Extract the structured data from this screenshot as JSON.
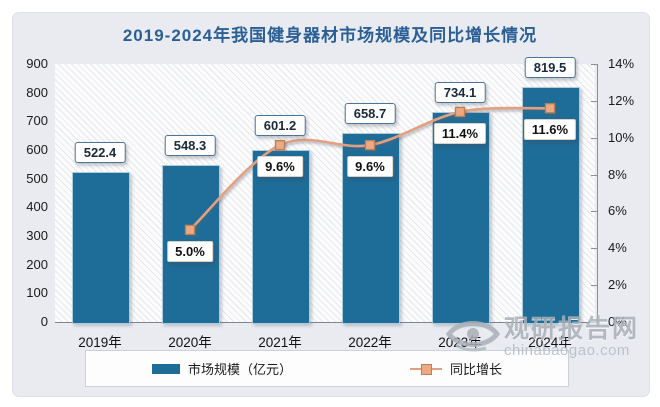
{
  "title": "2019-2024年我国健身器材市场规模及同比增长情况",
  "colors": {
    "title": "#2a5f96",
    "bar": "#1e6d99",
    "line": "#e2a081",
    "marker_fill": "#edaa82",
    "marker_stroke": "#bc8057",
    "card_bg": "#e9ebf1"
  },
  "chart_data": {
    "type": "combo-bar-line",
    "title": "2019-2024年我国健身器材市场规模及同比增长情况",
    "categories": [
      "2019年",
      "2020年",
      "2021年",
      "2022年",
      "2023年",
      "2024年"
    ],
    "series": [
      {
        "name": "市场规模（亿元）",
        "type": "bar",
        "axis": "left",
        "values": [
          522.4,
          548.3,
          601.2,
          658.7,
          734.1,
          819.5
        ]
      },
      {
        "name": "同比增长",
        "type": "line",
        "axis": "right",
        "values": [
          null,
          5.0,
          9.6,
          9.6,
          11.4,
          11.6
        ]
      }
    ],
    "left_axis": {
      "min": 0,
      "max": 900,
      "step": 100,
      "ticks": [
        "0",
        "100",
        "200",
        "300",
        "400",
        "500",
        "600",
        "700",
        "800",
        "900"
      ]
    },
    "right_axis": {
      "min": 0,
      "max": 14,
      "step": 2,
      "ticks": [
        "0%",
        "2%",
        "4%",
        "6%",
        "8%",
        "10%",
        "12%",
        "14%"
      ]
    },
    "grid": "off",
    "legend_position": "bottom",
    "plot_background": "diagonal-hatch"
  },
  "legend": {
    "bar_label": "市场规模（亿元）",
    "line_label": "同比增长"
  },
  "watermark": {
    "name": "观研报告网",
    "domain": "chinabaogao.com"
  }
}
